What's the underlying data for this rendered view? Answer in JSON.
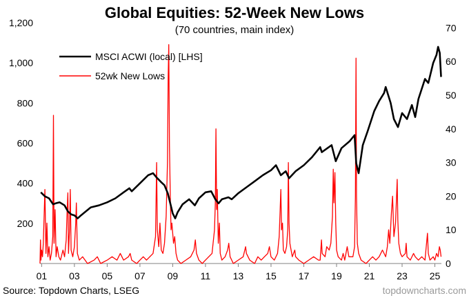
{
  "chart_data": {
    "type": "line",
    "title": "Global Equities: 52-Week New Lows",
    "subtitle": "(70 countries, main index)",
    "x_tick_labels": [
      "01",
      "03",
      "05",
      "07",
      "09",
      "11",
      "13",
      "15",
      "17",
      "19",
      "21",
      "23",
      "25"
    ],
    "x_tick_years": [
      2001,
      2003,
      2005,
      2007,
      2009,
      2011,
      2013,
      2015,
      2017,
      2019,
      2021,
      2023,
      2025
    ],
    "xlim": [
      2000.9,
      2025.4
    ],
    "left_axis": {
      "ylim": [
        0,
        1200
      ],
      "tick_labels": [
        "200",
        "400",
        "600",
        "800",
        "1,000",
        "1,200"
      ],
      "tick_values": [
        200,
        400,
        600,
        800,
        1000,
        1200
      ]
    },
    "right_axis": {
      "ylim": [
        0,
        71.5
      ],
      "tick_labels": [
        "0",
        "10",
        "20",
        "30",
        "40",
        "50",
        "60",
        "70"
      ],
      "tick_values": [
        0,
        10,
        20,
        30,
        40,
        50,
        60,
        70
      ]
    },
    "legend_position": "top-left",
    "series": [
      {
        "name": "MSCI ACWI (local) [LHS]",
        "axis": "left",
        "color": "#000000",
        "points": [
          [
            2000.95,
            355
          ],
          [
            2001.2,
            335
          ],
          [
            2001.45,
            325
          ],
          [
            2001.7,
            295
          ],
          [
            2001.85,
            300
          ],
          [
            2002.1,
            305
          ],
          [
            2002.4,
            290
          ],
          [
            2002.6,
            260
          ],
          [
            2002.8,
            245
          ],
          [
            2003.0,
            240
          ],
          [
            2003.2,
            225
          ],
          [
            2003.4,
            240
          ],
          [
            2003.7,
            260
          ],
          [
            2004.0,
            280
          ],
          [
            2004.5,
            290
          ],
          [
            2005.0,
            305
          ],
          [
            2005.5,
            325
          ],
          [
            2006.0,
            355
          ],
          [
            2006.35,
            375
          ],
          [
            2006.5,
            360
          ],
          [
            2007.0,
            400
          ],
          [
            2007.5,
            440
          ],
          [
            2007.8,
            450
          ],
          [
            2008.0,
            430
          ],
          [
            2008.3,
            405
          ],
          [
            2008.5,
            390
          ],
          [
            2008.7,
            350
          ],
          [
            2008.85,
            300
          ],
          [
            2009.0,
            250
          ],
          [
            2009.15,
            225
          ],
          [
            2009.3,
            255
          ],
          [
            2009.6,
            295
          ],
          [
            2010.0,
            320
          ],
          [
            2010.35,
            290
          ],
          [
            2010.6,
            325
          ],
          [
            2011.0,
            355
          ],
          [
            2011.35,
            360
          ],
          [
            2011.6,
            320
          ],
          [
            2011.8,
            300
          ],
          [
            2012.0,
            320
          ],
          [
            2012.4,
            330
          ],
          [
            2012.6,
            320
          ],
          [
            2013.0,
            350
          ],
          [
            2013.5,
            380
          ],
          [
            2014.0,
            410
          ],
          [
            2014.5,
            440
          ],
          [
            2015.0,
            465
          ],
          [
            2015.3,
            490
          ],
          [
            2015.6,
            440
          ],
          [
            2015.9,
            460
          ],
          [
            2016.1,
            425
          ],
          [
            2016.5,
            460
          ],
          [
            2017.0,
            490
          ],
          [
            2017.5,
            530
          ],
          [
            2018.0,
            580
          ],
          [
            2018.1,
            555
          ],
          [
            2018.7,
            590
          ],
          [
            2018.95,
            510
          ],
          [
            2019.3,
            575
          ],
          [
            2019.8,
            610
          ],
          [
            2020.1,
            640
          ],
          [
            2020.2,
            500
          ],
          [
            2020.35,
            450
          ],
          [
            2020.6,
            590
          ],
          [
            2020.9,
            660
          ],
          [
            2021.3,
            760
          ],
          [
            2021.6,
            810
          ],
          [
            2021.9,
            850
          ],
          [
            2022.0,
            880
          ],
          [
            2022.3,
            800
          ],
          [
            2022.5,
            720
          ],
          [
            2022.75,
            680
          ],
          [
            2023.0,
            750
          ],
          [
            2023.3,
            720
          ],
          [
            2023.6,
            790
          ],
          [
            2023.8,
            730
          ],
          [
            2024.0,
            820
          ],
          [
            2024.4,
            920
          ],
          [
            2024.6,
            900
          ],
          [
            2024.9,
            1000
          ],
          [
            2025.1,
            1040
          ],
          [
            2025.2,
            1080
          ],
          [
            2025.3,
            1050
          ],
          [
            2025.38,
            930
          ]
        ]
      },
      {
        "name": "52wk New Lows",
        "axis": "right",
        "color": "#ff0000",
        "points": [
          [
            2000.9,
            0
          ],
          [
            2000.93,
            7
          ],
          [
            2000.96,
            1
          ],
          [
            2001.0,
            4
          ],
          [
            2001.05,
            2
          ],
          [
            2001.1,
            6
          ],
          [
            2001.2,
            22
          ],
          [
            2001.26,
            3
          ],
          [
            2001.32,
            12
          ],
          [
            2001.38,
            2
          ],
          [
            2001.45,
            5
          ],
          [
            2001.52,
            1
          ],
          [
            2001.6,
            3
          ],
          [
            2001.68,
            8
          ],
          [
            2001.72,
            44
          ],
          [
            2001.76,
            6
          ],
          [
            2001.82,
            16
          ],
          [
            2001.88,
            2
          ],
          [
            2001.95,
            5
          ],
          [
            2002.05,
            2
          ],
          [
            2002.15,
            1
          ],
          [
            2002.3,
            4
          ],
          [
            2002.4,
            2
          ],
          [
            2002.5,
            7
          ],
          [
            2002.55,
            15
          ],
          [
            2002.6,
            21
          ],
          [
            2002.64,
            3
          ],
          [
            2002.7,
            10
          ],
          [
            2002.75,
            22
          ],
          [
            2002.8,
            4
          ],
          [
            2002.9,
            2
          ],
          [
            2003.0,
            5
          ],
          [
            2003.08,
            12
          ],
          [
            2003.12,
            18
          ],
          [
            2003.18,
            3
          ],
          [
            2003.3,
            1
          ],
          [
            2003.5,
            2
          ],
          [
            2003.8,
            0
          ],
          [
            2004.2,
            1
          ],
          [
            2004.4,
            2
          ],
          [
            2004.6,
            0
          ],
          [
            2005.0,
            1
          ],
          [
            2005.3,
            2
          ],
          [
            2005.6,
            1
          ],
          [
            2005.8,
            3
          ],
          [
            2006.0,
            1
          ],
          [
            2006.3,
            2
          ],
          [
            2006.4,
            3
          ],
          [
            2006.5,
            1
          ],
          [
            2006.8,
            0
          ],
          [
            2007.0,
            1
          ],
          [
            2007.2,
            2
          ],
          [
            2007.4,
            1
          ],
          [
            2007.6,
            2
          ],
          [
            2007.8,
            3
          ],
          [
            2007.95,
            8
          ],
          [
            2008.02,
            30
          ],
          [
            2008.06,
            10
          ],
          [
            2008.15,
            5
          ],
          [
            2008.22,
            12
          ],
          [
            2008.3,
            4
          ],
          [
            2008.4,
            3
          ],
          [
            2008.5,
            6
          ],
          [
            2008.6,
            14
          ],
          [
            2008.68,
            30
          ],
          [
            2008.72,
            55
          ],
          [
            2008.76,
            65
          ],
          [
            2008.8,
            35
          ],
          [
            2008.85,
            20
          ],
          [
            2008.9,
            10
          ],
          [
            2008.95,
            12
          ],
          [
            2009.05,
            6
          ],
          [
            2009.12,
            8
          ],
          [
            2009.2,
            3
          ],
          [
            2009.3,
            1
          ],
          [
            2009.5,
            0
          ],
          [
            2009.8,
            1
          ],
          [
            2010.1,
            2
          ],
          [
            2010.3,
            4
          ],
          [
            2010.38,
            7
          ],
          [
            2010.45,
            3
          ],
          [
            2010.6,
            1
          ],
          [
            2010.8,
            0
          ],
          [
            2011.0,
            1
          ],
          [
            2011.2,
            2
          ],
          [
            2011.4,
            3
          ],
          [
            2011.55,
            10
          ],
          [
            2011.6,
            18
          ],
          [
            2011.64,
            40
          ],
          [
            2011.68,
            16
          ],
          [
            2011.72,
            22
          ],
          [
            2011.78,
            6
          ],
          [
            2011.85,
            12
          ],
          [
            2011.9,
            3
          ],
          [
            2012.0,
            1
          ],
          [
            2012.2,
            2
          ],
          [
            2012.35,
            4
          ],
          [
            2012.42,
            6
          ],
          [
            2012.5,
            2
          ],
          [
            2012.7,
            0
          ],
          [
            2013.0,
            1
          ],
          [
            2013.3,
            2
          ],
          [
            2013.45,
            5
          ],
          [
            2013.5,
            3
          ],
          [
            2013.7,
            1
          ],
          [
            2014.0,
            0
          ],
          [
            2014.2,
            2
          ],
          [
            2014.4,
            1
          ],
          [
            2014.6,
            2
          ],
          [
            2014.8,
            3
          ],
          [
            2014.9,
            5
          ],
          [
            2015.0,
            2
          ],
          [
            2015.2,
            1
          ],
          [
            2015.4,
            3
          ],
          [
            2015.5,
            8
          ],
          [
            2015.6,
            22
          ],
          [
            2015.64,
            10
          ],
          [
            2015.7,
            12
          ],
          [
            2015.75,
            4
          ],
          [
            2015.85,
            3
          ],
          [
            2015.95,
            5
          ],
          [
            2016.02,
            10
          ],
          [
            2016.06,
            30
          ],
          [
            2016.1,
            12
          ],
          [
            2016.15,
            6
          ],
          [
            2016.3,
            2
          ],
          [
            2016.45,
            4
          ],
          [
            2016.5,
            2
          ],
          [
            2016.7,
            1
          ],
          [
            2017.0,
            0
          ],
          [
            2017.3,
            1
          ],
          [
            2017.6,
            2
          ],
          [
            2017.9,
            1
          ],
          [
            2018.0,
            1
          ],
          [
            2018.08,
            7
          ],
          [
            2018.12,
            3
          ],
          [
            2018.3,
            2
          ],
          [
            2018.4,
            5
          ],
          [
            2018.55,
            4
          ],
          [
            2018.65,
            6
          ],
          [
            2018.75,
            14
          ],
          [
            2018.8,
            28
          ],
          [
            2018.84,
            18
          ],
          [
            2018.9,
            27
          ],
          [
            2018.95,
            12
          ],
          [
            2019.0,
            4
          ],
          [
            2019.1,
            2
          ],
          [
            2019.3,
            1
          ],
          [
            2019.4,
            3
          ],
          [
            2019.5,
            1
          ],
          [
            2019.65,
            5
          ],
          [
            2019.75,
            2
          ],
          [
            2020.0,
            2
          ],
          [
            2020.1,
            5
          ],
          [
            2020.15,
            20
          ],
          [
            2020.19,
            61
          ],
          [
            2020.22,
            20
          ],
          [
            2020.27,
            6
          ],
          [
            2020.35,
            3
          ],
          [
            2020.5,
            1
          ],
          [
            2020.8,
            0
          ],
          [
            2021.0,
            1
          ],
          [
            2021.2,
            2
          ],
          [
            2021.4,
            1
          ],
          [
            2021.6,
            2
          ],
          [
            2021.8,
            4
          ],
          [
            2021.9,
            3
          ],
          [
            2022.0,
            2
          ],
          [
            2022.1,
            5
          ],
          [
            2022.18,
            10
          ],
          [
            2022.25,
            6
          ],
          [
            2022.35,
            15
          ],
          [
            2022.42,
            20
          ],
          [
            2022.5,
            8
          ],
          [
            2022.6,
            12
          ],
          [
            2022.7,
            25
          ],
          [
            2022.74,
            13
          ],
          [
            2022.8,
            6
          ],
          [
            2022.9,
            3
          ],
          [
            2023.0,
            2
          ],
          [
            2023.2,
            3
          ],
          [
            2023.25,
            6
          ],
          [
            2023.3,
            2
          ],
          [
            2023.5,
            1
          ],
          [
            2023.7,
            3
          ],
          [
            2023.8,
            2
          ],
          [
            2024.0,
            1
          ],
          [
            2024.2,
            2
          ],
          [
            2024.4,
            1
          ],
          [
            2024.55,
            9
          ],
          [
            2024.6,
            3
          ],
          [
            2024.7,
            1
          ],
          [
            2024.9,
            2
          ],
          [
            2025.0,
            1
          ],
          [
            2025.1,
            3
          ],
          [
            2025.2,
            2
          ],
          [
            2025.28,
            5
          ],
          [
            2025.33,
            4
          ],
          [
            2025.38,
            2
          ]
        ]
      }
    ]
  },
  "footer": {
    "source": "Source: Topdown Charts, LSEG",
    "credit": "topdowncharts.com"
  }
}
